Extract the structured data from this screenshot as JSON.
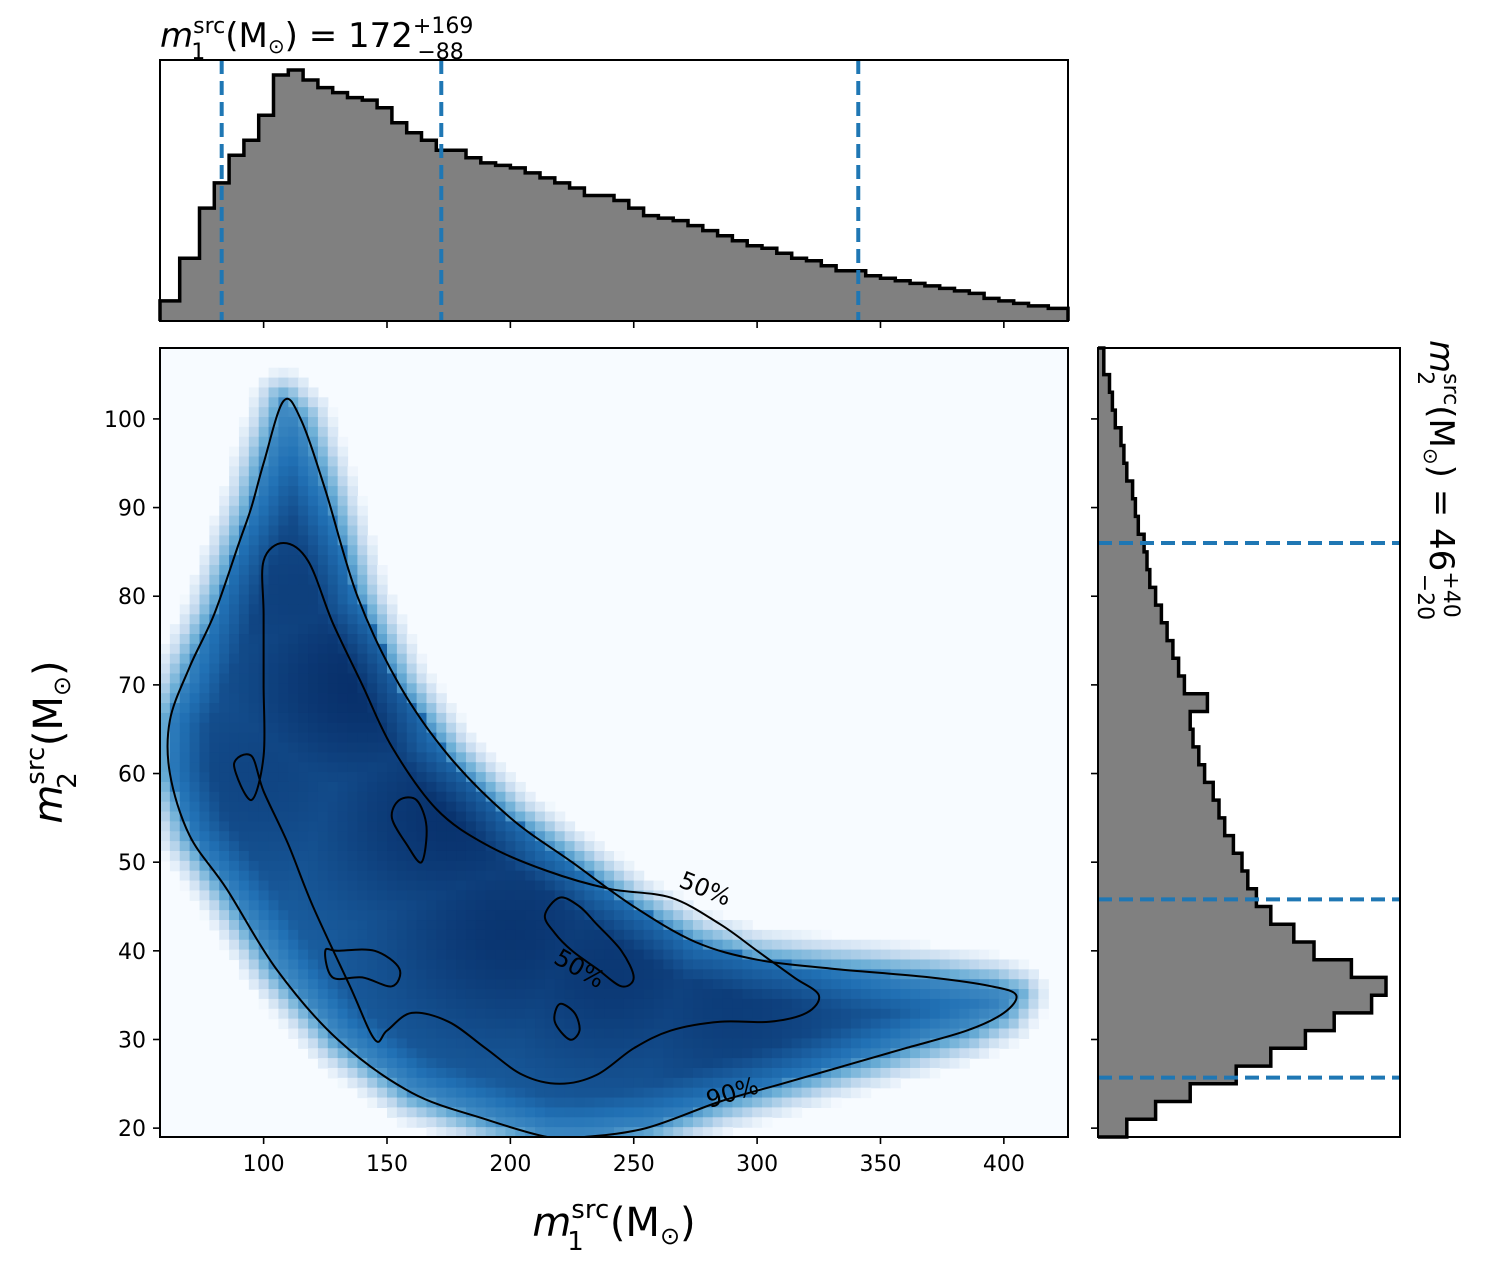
{
  "chart_data": [
    {
      "panel": "joint",
      "type": "heatmap",
      "xlabel_base": "m",
      "xlabel_sub": "1",
      "xlabel_sup": "src",
      "xlabel_unit": "(M",
      "ylabel_base": "m",
      "ylabel_sub": "2",
      "ylabel_sup": "src",
      "ylabel_unit": "(M",
      "unit_symbol": "⊙",
      "unit_close": ")",
      "xlim": [
        58,
        426
      ],
      "ylim": [
        19,
        108
      ],
      "xticks": [
        100,
        150,
        200,
        250,
        300,
        350,
        400
      ],
      "yticks": [
        20,
        30,
        40,
        50,
        60,
        70,
        80,
        90,
        100
      ],
      "colormap": [
        "#f7fbff",
        "#c6dbef",
        "#6baed6",
        "#2171b5",
        "#08306b"
      ],
      "density_peaks": [
        {
          "x": 140,
          "y": 70,
          "weight": 1.0
        },
        {
          "x": 175,
          "y": 55,
          "weight": 0.95
        },
        {
          "x": 200,
          "y": 42,
          "weight": 0.9
        },
        {
          "x": 240,
          "y": 38,
          "weight": 0.85
        },
        {
          "x": 290,
          "y": 34,
          "weight": 0.75
        },
        {
          "x": 115,
          "y": 80,
          "weight": 0.7
        },
        {
          "x": 100,
          "y": 60,
          "weight": 0.6
        }
      ],
      "contours": [
        {
          "level": "90%",
          "label": "90%",
          "label_pos": {
            "x": 290,
            "y": 24,
            "angle": -17
          },
          "points": [
            [
              100,
              95
            ],
            [
              108,
              102
            ],
            [
              115,
              100
            ],
            [
              125,
              92
            ],
            [
              138,
              80
            ],
            [
              155,
              70
            ],
            [
              175,
              62
            ],
            [
              200,
              55
            ],
            [
              225,
              50
            ],
            [
              250,
              45
            ],
            [
              275,
              41
            ],
            [
              300,
              39
            ],
            [
              330,
              38
            ],
            [
              370,
              37
            ],
            [
              395,
              36
            ],
            [
              405,
              35
            ],
            [
              400,
              33
            ],
            [
              385,
              31
            ],
            [
              360,
              29
            ],
            [
              335,
              27
            ],
            [
              310,
              25
            ],
            [
              285,
              23
            ],
            [
              255,
              20
            ],
            [
              230,
              19
            ],
            [
              215,
              19
            ],
            [
              190,
              21
            ],
            [
              160,
              24
            ],
            [
              130,
              30
            ],
            [
              105,
              38
            ],
            [
              85,
              47
            ],
            [
              70,
              53
            ],
            [
              62,
              60
            ],
            [
              62,
              66
            ],
            [
              70,
              72
            ],
            [
              80,
              78
            ],
            [
              90,
              86
            ],
            [
              95,
              90
            ],
            [
              100,
              95
            ]
          ]
        },
        {
          "level": "50%",
          "label": "50%",
          "label_pos": {
            "x": 279,
            "y": 47,
            "angle": 22
          },
          "points": [
            [
              100,
              84
            ],
            [
              108,
              86
            ],
            [
              118,
              84
            ],
            [
              128,
              77
            ],
            [
              140,
              70
            ],
            [
              152,
              63
            ],
            [
              170,
              56
            ],
            [
              190,
              52
            ],
            [
              215,
              49
            ],
            [
              240,
              47
            ],
            [
              265,
              46
            ],
            [
              285,
              43
            ],
            [
              300,
              40
            ],
            [
              315,
              37
            ],
            [
              325,
              35
            ],
            [
              320,
              33
            ],
            [
              305,
              32
            ],
            [
              285,
              32
            ],
            [
              265,
              31
            ],
            [
              250,
              29
            ],
            [
              235,
              26
            ],
            [
              220,
              25
            ],
            [
              205,
              26
            ],
            [
              190,
              29
            ],
            [
              175,
              32
            ],
            [
              160,
              33
            ],
            [
              150,
              31
            ],
            [
              145,
              30
            ],
            [
              135,
              36
            ],
            [
              120,
              45
            ],
            [
              110,
              52
            ],
            [
              100,
              58
            ],
            [
              95,
              62
            ],
            [
              88,
              61
            ],
            [
              95,
              57
            ],
            [
              100,
              62
            ],
            [
              100,
              70
            ],
            [
              100,
              78
            ],
            [
              100,
              84
            ]
          ]
        },
        {
          "level": "50%",
          "label": "50%",
          "label_pos": {
            "x": 228,
            "y": 38,
            "angle": 30
          },
          "points": [
            [
              220,
              46
            ],
            [
              228,
              45
            ],
            [
              235,
              43
            ],
            [
              245,
              40
            ],
            [
              250,
              37
            ],
            [
              245,
              36
            ],
            [
              235,
              38
            ],
            [
              225,
              40
            ],
            [
              218,
              42
            ],
            [
              214,
              44
            ],
            [
              220,
              46
            ]
          ]
        },
        {
          "level": "inner",
          "label": "",
          "points": [
            [
              155,
              57
            ],
            [
              162,
              57
            ],
            [
              166,
              54
            ],
            [
              164,
              50
            ],
            [
              158,
              52
            ],
            [
              152,
              55
            ],
            [
              155,
              57
            ]
          ]
        },
        {
          "level": "inner",
          "label": "",
          "points": [
            [
              130,
              40
            ],
            [
              145,
              40
            ],
            [
              155,
              38
            ],
            [
              152,
              36
            ],
            [
              140,
              37
            ],
            [
              128,
              37
            ],
            [
              125,
              40
            ],
            [
              130,
              40
            ]
          ]
        },
        {
          "level": "inner",
          "label": "",
          "points": [
            [
              220,
              34
            ],
            [
              226,
              33
            ],
            [
              228,
              31
            ],
            [
              224,
              30
            ],
            [
              218,
              32
            ],
            [
              220,
              34
            ]
          ]
        }
      ]
    },
    {
      "panel": "top-marginal",
      "type": "bar",
      "title_base": "m",
      "title_sub": "1",
      "title_sup": "src",
      "title_unit": "(M",
      "title_eq": ") = 172",
      "title_plus": "+169",
      "title_minus": "−88",
      "quantiles": [
        83,
        172,
        341
      ],
      "fill_color": "#808080",
      "line_color": "#000000",
      "quantile_color": "#1f77b4",
      "bin_edges": [
        58,
        66,
        74,
        80,
        86,
        92,
        98,
        104,
        110,
        116,
        122,
        128,
        134,
        140,
        146,
        152,
        158,
        164,
        170,
        176,
        182,
        188,
        194,
        200,
        206,
        212,
        218,
        224,
        230,
        236,
        242,
        248,
        254,
        260,
        266,
        272,
        278,
        284,
        290,
        296,
        302,
        308,
        314,
        320,
        326,
        332,
        338,
        344,
        350,
        356,
        362,
        368,
        374,
        380,
        386,
        392,
        398,
        404,
        410,
        418,
        426
      ],
      "counts": [
        0.08,
        0.25,
        0.45,
        0.55,
        0.66,
        0.72,
        0.82,
        0.98,
        1.0,
        0.96,
        0.93,
        0.91,
        0.89,
        0.88,
        0.85,
        0.79,
        0.75,
        0.72,
        0.68,
        0.68,
        0.65,
        0.63,
        0.62,
        0.61,
        0.59,
        0.57,
        0.55,
        0.53,
        0.5,
        0.5,
        0.48,
        0.45,
        0.42,
        0.41,
        0.4,
        0.38,
        0.36,
        0.34,
        0.32,
        0.3,
        0.29,
        0.27,
        0.25,
        0.24,
        0.22,
        0.2,
        0.2,
        0.18,
        0.17,
        0.16,
        0.15,
        0.14,
        0.13,
        0.12,
        0.11,
        0.09,
        0.08,
        0.07,
        0.06,
        0.05
      ]
    },
    {
      "panel": "right-marginal",
      "type": "bar",
      "title_base": "m",
      "title_sub": "2",
      "title_sup": "src",
      "title_unit": "(M",
      "title_eq": ") = 46",
      "title_plus": "+40",
      "title_minus": "−20",
      "quantiles": [
        25.7,
        45.8,
        86
      ],
      "fill_color": "#808080",
      "line_color": "#000000",
      "quantile_color": "#1f77b4",
      "bin_edges": [
        19,
        21,
        23,
        25,
        27,
        29,
        31,
        33,
        35,
        37,
        39,
        41,
        43,
        45,
        47,
        49,
        51,
        53,
        55,
        57,
        59,
        61,
        63,
        65,
        67,
        69,
        71,
        73,
        75,
        77,
        79,
        81,
        83,
        85,
        87,
        89,
        91,
        93,
        95,
        97,
        99,
        101,
        103,
        105,
        108
      ],
      "counts": [
        0.1,
        0.2,
        0.32,
        0.48,
        0.6,
        0.72,
        0.82,
        0.95,
        1.0,
        0.88,
        0.75,
        0.68,
        0.6,
        0.55,
        0.52,
        0.5,
        0.47,
        0.44,
        0.42,
        0.4,
        0.37,
        0.35,
        0.33,
        0.32,
        0.38,
        0.3,
        0.28,
        0.26,
        0.24,
        0.22,
        0.2,
        0.18,
        0.17,
        0.16,
        0.14,
        0.13,
        0.12,
        0.1,
        0.09,
        0.08,
        0.06,
        0.05,
        0.04,
        0.02
      ]
    }
  ]
}
